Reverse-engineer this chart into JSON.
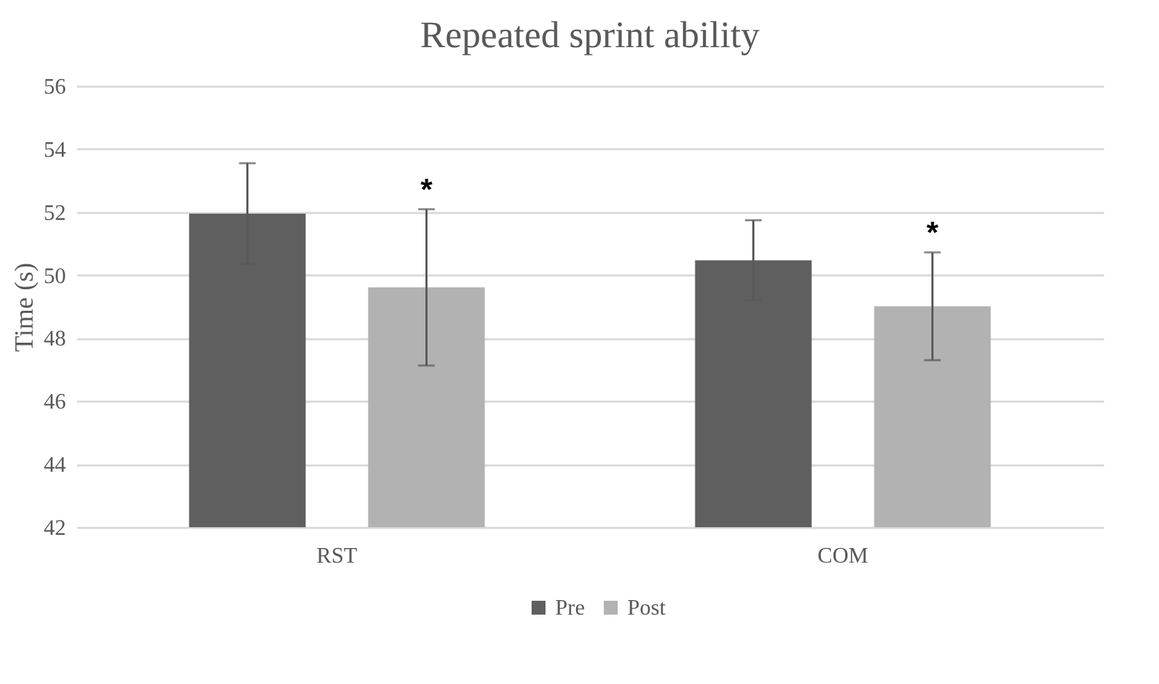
{
  "chart_data": {
    "type": "bar",
    "title": "Repeated sprint ability",
    "ylabel": "Time (s)",
    "categories": [
      "RST",
      "COM"
    ],
    "series": [
      {
        "name": "Pre",
        "color": "#5f5f5f",
        "values": [
          51.95,
          50.47
        ],
        "errors": [
          1.6,
          1.27
        ]
      },
      {
        "name": "Post",
        "color": "#b2b2b2",
        "values": [
          49.61,
          49.01
        ],
        "errors": [
          2.48,
          1.71
        ]
      }
    ],
    "annotations": [
      "*",
      "*"
    ],
    "ylim": [
      42,
      56
    ],
    "yticks": [
      42,
      44,
      46,
      48,
      50,
      52,
      54,
      56
    ],
    "grid": "y",
    "legend": "bottom"
  }
}
